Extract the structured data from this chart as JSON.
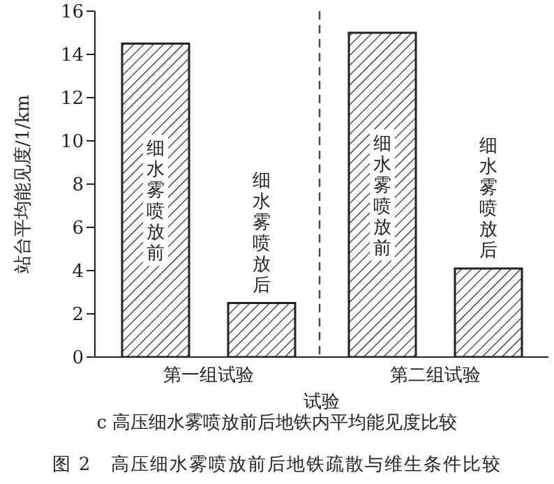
{
  "chart_data": {
    "type": "bar",
    "title": "图 2　高压细水雾喷放前后地铁疏散与维生条件比较",
    "subtitle": "c 高压细水雾喷放前后地铁内平均能见度比较",
    "xlabel": "试验",
    "ylabel": "站台平均能见度/1/km",
    "categories": [
      "第一组试验",
      "第二组试验"
    ],
    "series": [
      {
        "name": "细水雾喷放前",
        "color": "#222222",
        "values": [
          14.5,
          15.0
        ]
      },
      {
        "name": "细水雾喷放后",
        "color": "#222222",
        "values": [
          2.5,
          4.1
        ]
      }
    ],
    "ylim": [
      0,
      16
    ],
    "yticks": [
      0,
      2,
      4,
      6,
      8,
      10,
      12,
      14,
      16
    ],
    "grid": false
  }
}
